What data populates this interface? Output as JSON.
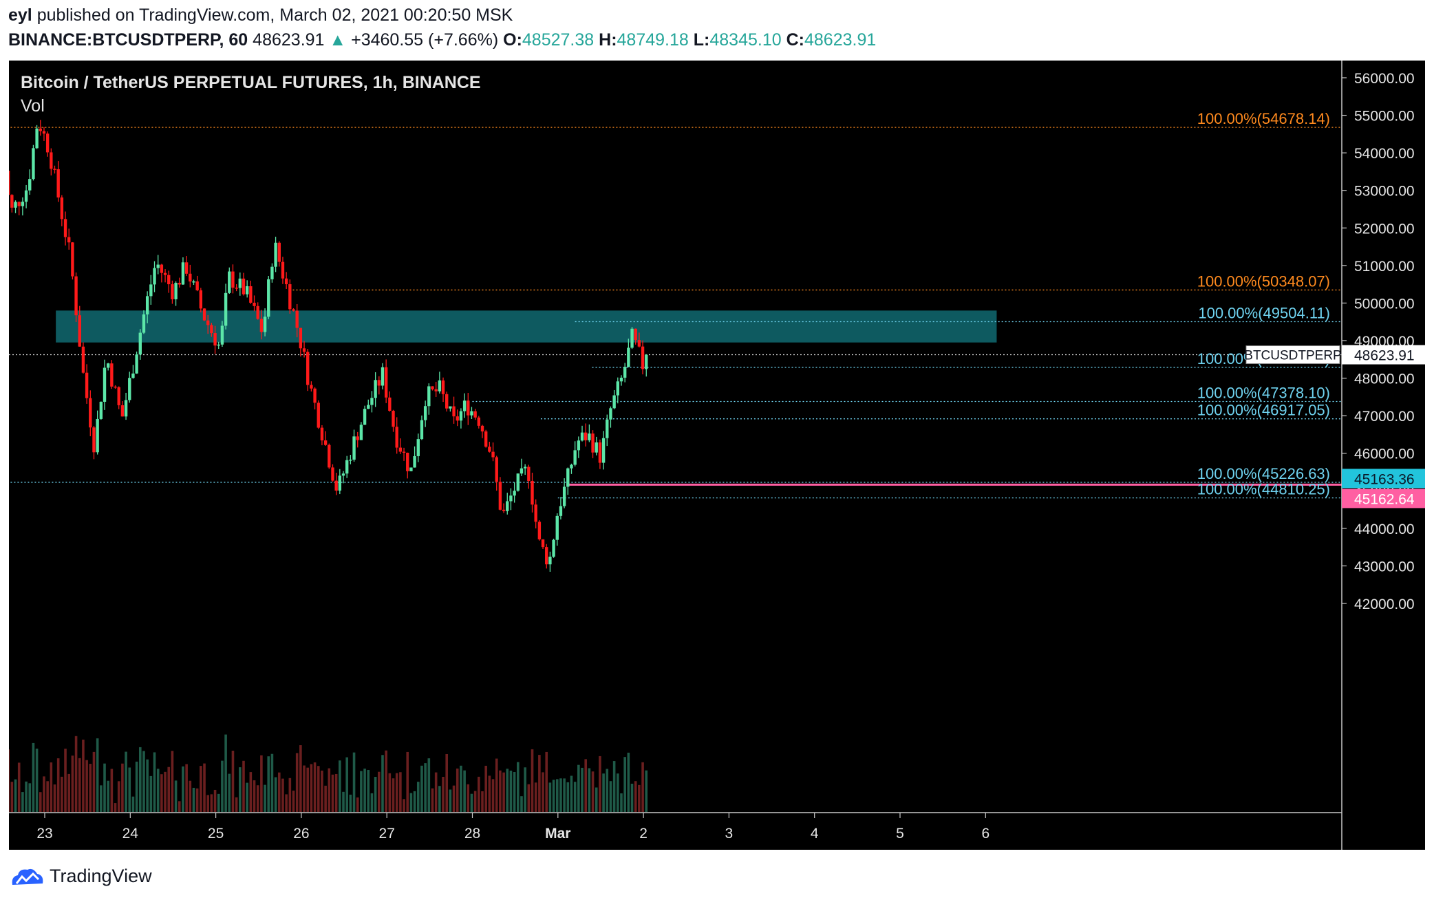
{
  "header": {
    "author": "eyl",
    "published_text": "published on TradingView.com, March 02, 2021 00:20:50 MSK",
    "symbol": "BINANCE:BTCUSDTPERP, 60",
    "last_price": "48623.91",
    "change_arrow": "▲",
    "change": "+3460.55 (+7.66%)",
    "ohlc": [
      {
        "k": "O:",
        "v": "48527.38"
      },
      {
        "k": "H:",
        "v": "48749.18"
      },
      {
        "k": "L:",
        "v": "48345.10"
      },
      {
        "k": "C:",
        "v": "48623.91"
      }
    ]
  },
  "footer": {
    "brand": "TradingView"
  },
  "colors": {
    "background": "#000000",
    "up": "#5ce6a8",
    "down": "#ff1a1a",
    "fib_orange": "#ff8a1e",
    "fib_blue": "#6fd3f0",
    "zone": "#0e5a60",
    "pink": "#ff5fa2",
    "cyan_tag": "#22c4dc"
  },
  "chart_data": {
    "type": "candlestick",
    "title": "Bitcoin / TetherUS PERPETUAL FUTURES, 1h, BINANCE",
    "subtitle": "Vol",
    "interval": "1h",
    "ylim": [
      41800,
      56800
    ],
    "y_ticks": [
      "56000.00",
      "55000.00",
      "54000.00",
      "53000.00",
      "52000.00",
      "51000.00",
      "50000.00",
      "49000.00",
      "48000.00",
      "47000.00",
      "46000.00",
      "45000.00",
      "44000.00",
      "43000.00",
      "42000.00"
    ],
    "x_ticks": [
      "23",
      "24",
      "25",
      "26",
      "27",
      "28",
      "Mar",
      "2",
      "3",
      "4",
      "5",
      "6"
    ],
    "grid": false,
    "current_price": {
      "label": "BTCUSDTPERP",
      "value": "48623.91",
      "y": 48623.91
    },
    "price_tags": [
      {
        "value": "45163.36",
        "y": 45163.36,
        "color": "cyan"
      },
      {
        "value": "45162.64",
        "y": 45162.64,
        "color": "pink"
      }
    ],
    "fib_levels": [
      {
        "label": "100.00%(54678.14)",
        "y": 54678.14,
        "color": "orange",
        "x_start_day": 22.4
      },
      {
        "label": "100.00%(50348.07)",
        "y": 50348.07,
        "color": "orange",
        "x_start_day": 25.9
      },
      {
        "label": "100.00%(49504.11)",
        "y": 49504.11,
        "color": "blue",
        "x_start_day": 29.2
      },
      {
        "label": "100.00%(48288.81)",
        "y": 48288.81,
        "color": "blue",
        "x_start_day": 29.4
      },
      {
        "label": "100.00%(47378.10)",
        "y": 47378.1,
        "color": "blue",
        "x_start_day": 28.0
      },
      {
        "label": "100.00%(46917.05)",
        "y": 46917.05,
        "color": "blue",
        "x_start_day": 28.8
      },
      {
        "label": "100.00%(45226.63)",
        "y": 45226.63,
        "color": "blue",
        "x_start_day": 22.4
      },
      {
        "label": "100.00%(44810.25)",
        "y": 44810.25,
        "color": "blue",
        "x_start_day": 29.0
      }
    ],
    "zone": {
      "from_day": 23.13,
      "to_day": 34.13,
      "y_low": 48950,
      "y_high": 49800
    },
    "pink_line": {
      "y": 45162.64,
      "from_day": 29.1
    },
    "series": [
      {
        "name": "price",
        "points": [
          {
            "day": 22.45,
            "close": 55000
          },
          {
            "day": 22.6,
            "close": 52400
          },
          {
            "day": 22.8,
            "close": 53100
          },
          {
            "day": 22.92,
            "close": 54900
          },
          {
            "day": 23.05,
            "close": 54100
          },
          {
            "day": 23.3,
            "close": 51200
          },
          {
            "day": 23.45,
            "close": 48100
          },
          {
            "day": 23.58,
            "close": 46200
          },
          {
            "day": 23.72,
            "close": 48600
          },
          {
            "day": 23.9,
            "close": 46900
          },
          {
            "day": 24.02,
            "close": 48200
          },
          {
            "day": 24.15,
            "close": 49600
          },
          {
            "day": 24.3,
            "close": 51100
          },
          {
            "day": 24.5,
            "close": 50300
          },
          {
            "day": 24.65,
            "close": 51000
          },
          {
            "day": 24.85,
            "close": 49700
          },
          {
            "day": 25.05,
            "close": 48800
          },
          {
            "day": 25.15,
            "close": 50700
          },
          {
            "day": 25.35,
            "close": 50300
          },
          {
            "day": 25.55,
            "close": 49200
          },
          {
            "day": 25.68,
            "close": 51600
          },
          {
            "day": 25.82,
            "close": 50500
          },
          {
            "day": 25.97,
            "close": 49200
          },
          {
            "day": 26.1,
            "close": 47800
          },
          {
            "day": 26.25,
            "close": 46500
          },
          {
            "day": 26.42,
            "close": 45000
          },
          {
            "day": 26.6,
            "close": 46200
          },
          {
            "day": 26.78,
            "close": 47300
          },
          {
            "day": 26.95,
            "close": 48100
          },
          {
            "day": 27.1,
            "close": 46500
          },
          {
            "day": 27.28,
            "close": 45500
          },
          {
            "day": 27.45,
            "close": 47500
          },
          {
            "day": 27.62,
            "close": 47700
          },
          {
            "day": 27.78,
            "close": 46800
          },
          {
            "day": 27.93,
            "close": 47300
          },
          {
            "day": 28.08,
            "close": 46900
          },
          {
            "day": 28.22,
            "close": 46000
          },
          {
            "day": 28.35,
            "close": 44300
          },
          {
            "day": 28.5,
            "close": 45100
          },
          {
            "day": 28.65,
            "close": 45600
          },
          {
            "day": 28.78,
            "close": 43600
          },
          {
            "day": 28.9,
            "close": 43100
          },
          {
            "day": 29.0,
            "close": 44500
          },
          {
            "day": 29.1,
            "close": 45200
          },
          {
            "day": 29.22,
            "close": 46300
          },
          {
            "day": 29.35,
            "close": 46500
          },
          {
            "day": 29.5,
            "close": 45900
          },
          {
            "day": 29.62,
            "close": 47200
          },
          {
            "day": 29.75,
            "close": 48000
          },
          {
            "day": 29.87,
            "close": 49100
          },
          {
            "day": 30.0,
            "close": 48300
          },
          {
            "day": 30.07,
            "close": 48623.91
          }
        ]
      }
    ]
  }
}
